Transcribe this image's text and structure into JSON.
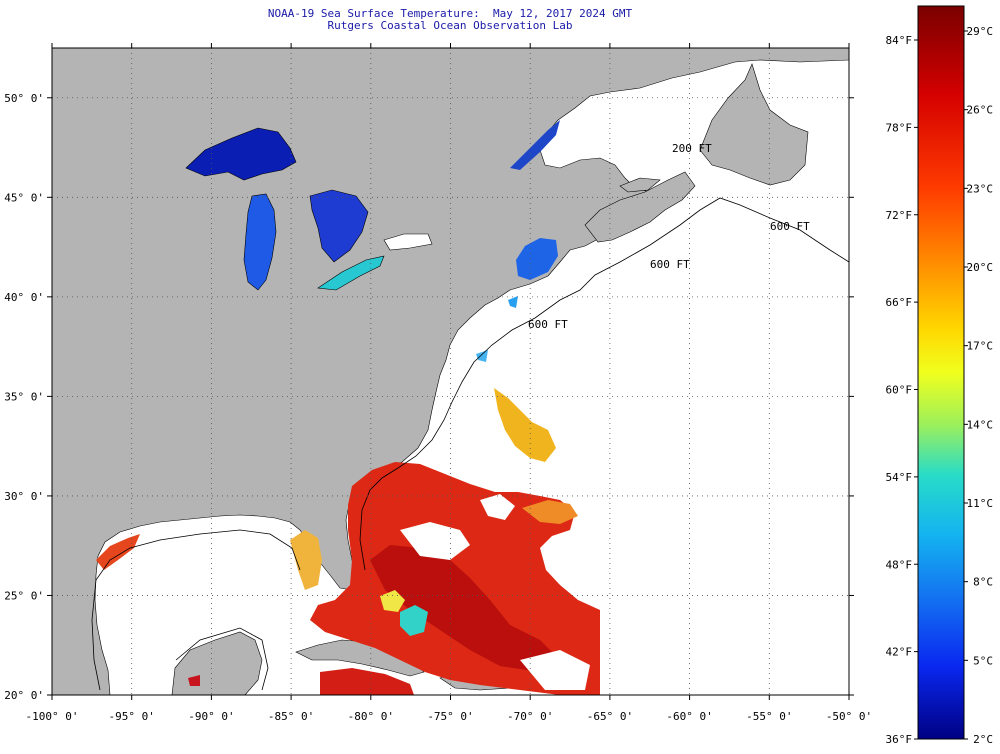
{
  "title": "NOAA-19 Sea Surface Temperature:  May 12, 2017 2024 GMT",
  "subtitle": "Rutgers Coastal Ocean Observation Lab",
  "map": {
    "lon_range": [
      -100,
      -50
    ],
    "lat_range": [
      20,
      52.5
    ],
    "lon_ticks": [
      "-100° 0'",
      "-95° 0'",
      "-90° 0'",
      "-85° 0'",
      "-80° 0'",
      "-75° 0'",
      "-70° 0'",
      "-65° 0'",
      "-60° 0'",
      "-55° 0'",
      "-50° 0'"
    ],
    "lat_ticks": [
      "50° 0'",
      "45° 0'",
      "40° 0'",
      "35° 0'",
      "30° 0'",
      "25° 0'",
      "20° 0'"
    ],
    "depth_labels": [
      "200 FT",
      "600 FT",
      "600 FT",
      "600 FT"
    ],
    "colors": {
      "land": "#b4b4b4",
      "cloud": "#ffffff",
      "grid": "#555555"
    }
  },
  "colorbar": {
    "fahrenheit": [
      "84°F",
      "78°F",
      "72°F",
      "66°F",
      "60°F",
      "54°F",
      "48°F",
      "42°F",
      "36°F"
    ],
    "celsius": [
      "29°C",
      "26°C",
      "23°C",
      "20°C",
      "17°C",
      "14°C",
      "11°C",
      "8°C",
      "5°C",
      "2°C"
    ],
    "colors": [
      "#8b0000",
      "#e61e0a",
      "#ff7a00",
      "#ffd200",
      "#e6ff14",
      "#64e682",
      "#14d2e6",
      "#0a8cf0",
      "#0a32ff",
      "#00008c"
    ]
  }
}
